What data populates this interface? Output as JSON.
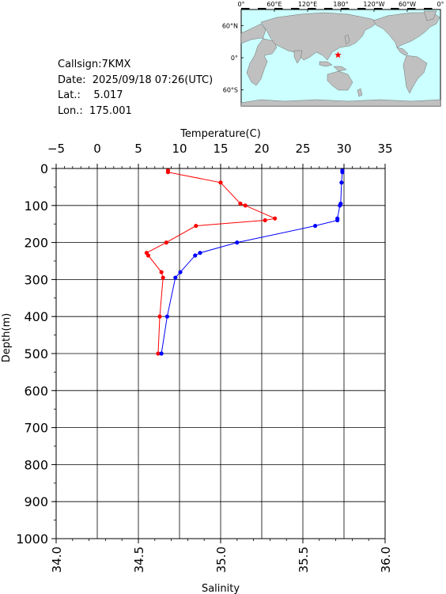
{
  "info": {
    "callsign_label": "Callsign:",
    "callsign": "7KMX",
    "date_label": "Date:",
    "date": "2025/09/18 07:26(UTC)",
    "lat_label": "Lat.:",
    "lat": "5.017",
    "lon_label": "Lon.:",
    "lon": "175.001"
  },
  "map": {
    "lon_ticks": [
      "0°",
      "60°E",
      "120°E",
      "180°",
      "120°W",
      "60°W",
      "0°"
    ],
    "lat_ticks": [
      "60°N",
      "0°",
      "60°S"
    ],
    "ocean_color": "#ccffff",
    "land_color": "#c0c0c0",
    "marker": {
      "lon": 175.001,
      "lat": 5.017,
      "color": "#ff0000",
      "shape": "star"
    }
  },
  "chart_data": {
    "type": "line",
    "title": "",
    "top_axis": {
      "label": "Temperature(C)",
      "range": [
        -5,
        35
      ],
      "ticks": [
        "−5",
        "0",
        "5",
        "10",
        "15",
        "20",
        "25",
        "30",
        "35"
      ]
    },
    "bottom_axis": {
      "label": "Salinity",
      "range": [
        34.0,
        36.0
      ],
      "ticks": [
        "34.0",
        "34.5",
        "35.0",
        "35.5",
        "36.0"
      ]
    },
    "y_axis": {
      "label": "Depth(m)",
      "range": [
        0,
        1000
      ],
      "inverted": true,
      "ticks": [
        "0",
        "100",
        "200",
        "300",
        "400",
        "500",
        "600",
        "700",
        "800",
        "900",
        "1000"
      ]
    },
    "grid": true,
    "series": [
      {
        "axis": "bottom",
        "color": "#ff0000",
        "points": [
          [
            34.68,
            5
          ],
          [
            34.68,
            10
          ],
          [
            35.0,
            38
          ],
          [
            35.12,
            95
          ],
          [
            35.15,
            100
          ],
          [
            35.33,
            135
          ],
          [
            35.27,
            140
          ],
          [
            34.85,
            155
          ],
          [
            34.67,
            200
          ],
          [
            34.55,
            228
          ],
          [
            34.56,
            235
          ],
          [
            34.64,
            280
          ],
          [
            34.65,
            295
          ],
          [
            34.63,
            400
          ],
          [
            34.62,
            500
          ]
        ]
      },
      {
        "axis": "top",
        "color": "#0000ff",
        "points": [
          [
            29.8,
            5
          ],
          [
            29.8,
            10
          ],
          [
            29.7,
            38
          ],
          [
            29.6,
            95
          ],
          [
            29.5,
            100
          ],
          [
            29.2,
            135
          ],
          [
            29.2,
            140
          ],
          [
            26.5,
            155
          ],
          [
            17.0,
            200
          ],
          [
            12.5,
            228
          ],
          [
            11.9,
            235
          ],
          [
            10.1,
            280
          ],
          [
            9.5,
            295
          ],
          [
            8.5,
            400
          ],
          [
            7.8,
            500
          ]
        ]
      }
    ]
  }
}
